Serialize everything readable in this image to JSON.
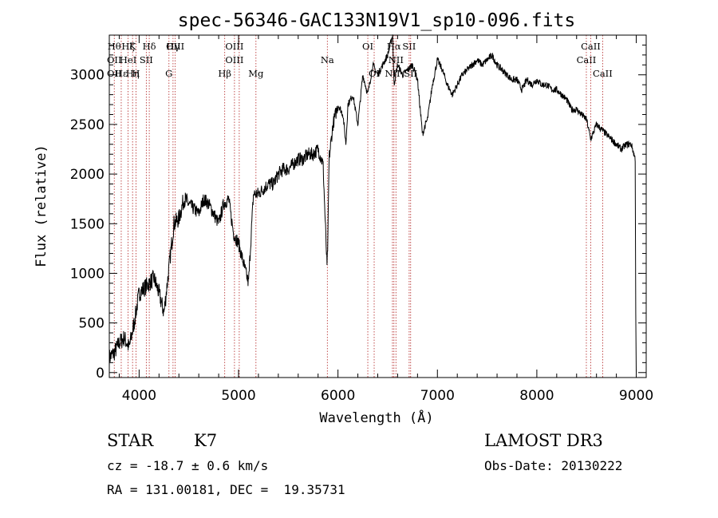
{
  "chart_data": {
    "type": "line",
    "title": "spec-56346-GAC133N19V1_sp10-096.fits",
    "xlabel": "Wavelength (Å)",
    "ylabel": "Flux (relative)",
    "xlim": [
      3700,
      9100
    ],
    "ylim": [
      -50,
      3400
    ],
    "xticks": [
      4000,
      5000,
      6000,
      7000,
      8000,
      9000
    ],
    "yticks": [
      0,
      500,
      1000,
      1500,
      2000,
      2500,
      3000
    ],
    "grid": false,
    "series": [
      {
        "x": [
          3700,
          3750,
          3800,
          3850,
          3900,
          3950,
          4000,
          4050,
          4100,
          4150,
          4200,
          4250,
          4300,
          4350,
          4400,
          4450,
          4500,
          4550,
          4600,
          4650,
          4700,
          4750,
          4800,
          4850,
          4900,
          4950,
          5000,
          5050,
          5100,
          5150,
          5200,
          5250,
          5300,
          5350,
          5400,
          5450,
          5500,
          5550,
          5600,
          5650,
          5700,
          5750,
          5800,
          5850,
          5890,
          5900,
          5910,
          5950,
          6000,
          6050,
          6080,
          6100,
          6150,
          6200,
          6250,
          6300,
          6350,
          6400,
          6450,
          6500,
          6550,
          6563,
          6600,
          6650,
          6700,
          6750,
          6800,
          6850,
          6880,
          6900,
          6950,
          7000,
          7050,
          7100,
          7150,
          7200,
          7250,
          7300,
          7350,
          7400,
          7450,
          7500,
          7550,
          7600,
          7650,
          7700,
          7750,
          7800,
          7850,
          7900,
          7950,
          8000,
          8050,
          8100,
          8150,
          8200,
          8250,
          8300,
          8350,
          8400,
          8450,
          8500,
          8542,
          8600,
          8650,
          8700,
          8750,
          8800,
          8850,
          8900,
          8950,
          8990
        ],
        "y": [
          150,
          200,
          300,
          350,
          250,
          500,
          800,
          850,
          900,
          950,
          800,
          600,
          1050,
          1500,
          1550,
          1750,
          1700,
          1650,
          1600,
          1750,
          1700,
          1600,
          1500,
          1700,
          1750,
          1400,
          1300,
          1100,
          900,
          1800,
          1800,
          1850,
          1900,
          1900,
          2000,
          2050,
          2050,
          2100,
          2150,
          2150,
          2200,
          2200,
          2250,
          2100,
          1050,
          1400,
          2150,
          2500,
          2700,
          2600,
          2300,
          2700,
          2800,
          2500,
          3000,
          2800,
          3100,
          3000,
          3100,
          3200,
          3400,
          2900,
          3100,
          3000,
          3050,
          3100,
          2950,
          2400,
          2500,
          2550,
          2900,
          3150,
          3050,
          2900,
          2800,
          2900,
          3000,
          3050,
          3100,
          3150,
          3100,
          3150,
          3200,
          3100,
          3050,
          3000,
          2950,
          2950,
          2850,
          2950,
          2900,
          2950,
          2900,
          2900,
          2850,
          2850,
          2800,
          2750,
          2650,
          2650,
          2600,
          2550,
          2350,
          2500,
          2450,
          2400,
          2350,
          2300,
          2250,
          2300,
          2300,
          2150
        ]
      }
    ],
    "lines": [
      {
        "x": 3750,
        "labels": [
          "Hθ",
          "OII",
          "OII"
        ]
      },
      {
        "x": 3820,
        "labels": [
          "",
          "",
          "Hε"
        ]
      },
      {
        "x": 3889,
        "labels": [
          "Hζ",
          "HeI",
          ""
        ]
      },
      {
        "x": 3934,
        "labels": [
          "K",
          "",
          "Hη"
        ]
      },
      {
        "x": 3968,
        "labels": [
          "",
          "",
          "H"
        ]
      },
      {
        "x": 4072,
        "labels": [
          "",
          "SII",
          ""
        ]
      },
      {
        "x": 4102,
        "labels": [
          "Hδ",
          "",
          ""
        ]
      },
      {
        "x": 4300,
        "labels": [
          "",
          "",
          "G"
        ]
      },
      {
        "x": 4341,
        "labels": [
          "Hγ",
          "",
          ""
        ]
      },
      {
        "x": 4363,
        "labels": [
          "OIII",
          "",
          ""
        ]
      },
      {
        "x": 4861,
        "labels": [
          "",
          "",
          "Hβ"
        ]
      },
      {
        "x": 4959,
        "labels": [
          "OIII",
          "OIII",
          ""
        ]
      },
      {
        "x": 5007,
        "labels": [
          "",
          "",
          ""
        ]
      },
      {
        "x": 5175,
        "labels": [
          "",
          "",
          "Mg"
        ]
      },
      {
        "x": 5893,
        "labels": [
          "",
          "Na",
          ""
        ]
      },
      {
        "x": 6300,
        "labels": [
          "OI",
          "",
          ""
        ]
      },
      {
        "x": 6364,
        "labels": [
          "",
          "",
          "OI"
        ]
      },
      {
        "x": 6548,
        "labels": [
          "",
          "",
          "NII"
        ]
      },
      {
        "x": 6563,
        "labels": [
          "Hα",
          "",
          ""
        ]
      },
      {
        "x": 6583,
        "labels": [
          "",
          "NII",
          ""
        ]
      },
      {
        "x": 6716,
        "labels": [
          "SII",
          "",
          ""
        ]
      },
      {
        "x": 6731,
        "labels": [
          "",
          "",
          "SII"
        ]
      },
      {
        "x": 8498,
        "labels": [
          "",
          "CaII",
          ""
        ]
      },
      {
        "x": 8542,
        "labels": [
          "CaII",
          "",
          ""
        ]
      },
      {
        "x": 8662,
        "labels": [
          "",
          "",
          "CaII"
        ]
      }
    ]
  },
  "info": {
    "object_class": "STAR",
    "subclass": "K7",
    "cz": "cz = -18.7 ± 0.6 km/s",
    "radec": "RA = 131.00181, DEC =  19.35731",
    "survey": "LAMOST DR3",
    "obs_date": "Obs-Date: 20130222"
  }
}
